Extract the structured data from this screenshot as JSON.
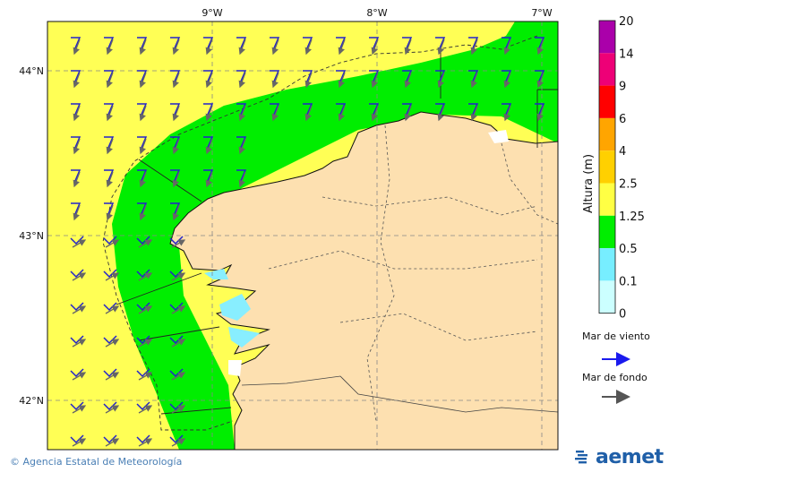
{
  "map": {
    "lon_labels": [
      "9°W",
      "8°W",
      "7°W"
    ],
    "lat_labels": [
      "44°N",
      "43°N",
      "42°N"
    ],
    "colors": {
      "sea_high": "#ffff55",
      "sea_mid": "#00ee00",
      "sea_low": "#88eeff",
      "land": "#fde0b0",
      "wind_arrow": "#2222cc",
      "swell_arrow": "#666666"
    }
  },
  "legend": {
    "title": "Altura (m)",
    "levels": [
      "20",
      "14",
      "9",
      "6",
      "4",
      "2.5",
      "1.25",
      "0.5",
      "0.1",
      "0"
    ],
    "colors": [
      "#aa00aa",
      "#ee0077",
      "#ff0000",
      "#ffa500",
      "#ffd000",
      "#ffff44",
      "#00ee00",
      "#77eeff",
      "#ccffff"
    ],
    "wind_label": "Mar de viento",
    "swell_label": "Mar de fondo"
  },
  "footer": {
    "credit": "© Agencia Estatal de Meteorología",
    "logo_text": "aemet"
  }
}
